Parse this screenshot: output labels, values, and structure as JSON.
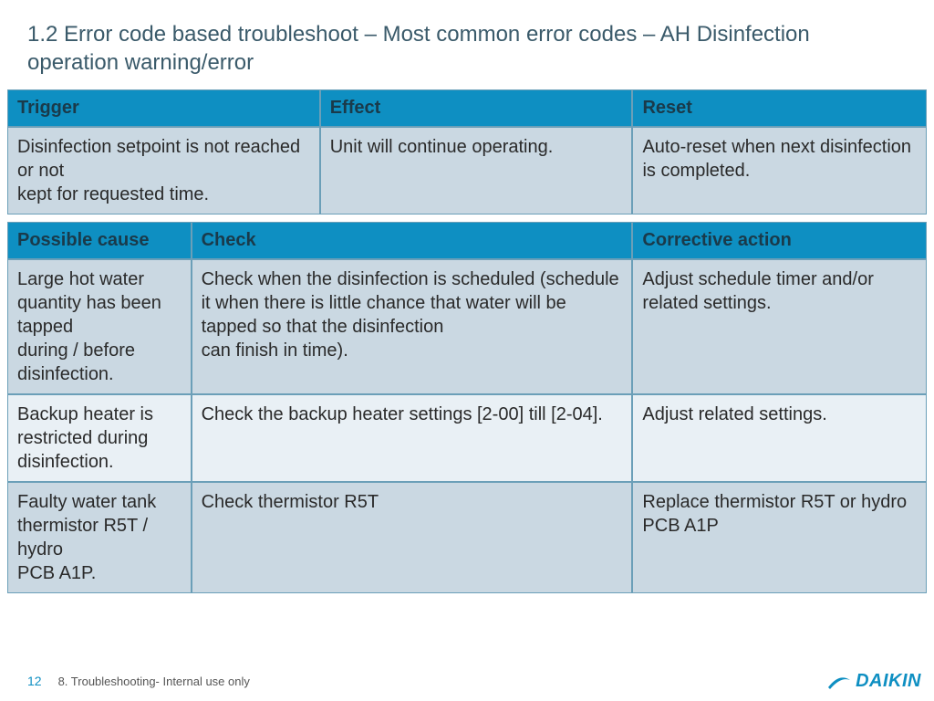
{
  "title": "1.2 Error code based troubleshoot – Most common error codes – AH Disinfection operation warning/error",
  "table1": {
    "headers": [
      "Trigger",
      "Effect",
      "Reset"
    ],
    "row": [
      "Disinfection setpoint is not reached or not\nkept for requested time.",
      "Unit will continue operating.",
      "Auto-reset when next disinfection is completed."
    ]
  },
  "table2": {
    "headers": [
      "Possible cause",
      "Check",
      "Corrective action"
    ],
    "rows": [
      {
        "cause": "Large hot water quantity has been tapped\nduring / before disinfection.",
        "check": "Check when the disinfection is scheduled (schedule it when there is little chance that water will be tapped so that the disinfection\ncan finish in time).",
        "action": "Adjust schedule timer and/or related settings.",
        "shade": "a"
      },
      {
        "cause": "Backup heater is restricted during disinfection.",
        "check": "Check the backup heater settings [2-00] till [2-04].",
        "action": "Adjust related settings.",
        "shade": "b"
      },
      {
        "cause": "Faulty water tank thermistor R5T / hydro\nPCB A1P.",
        "check": "Check thermistor R5T",
        "action": "Replace thermistor R5T or hydro PCB A1P",
        "shade": "a"
      }
    ]
  },
  "footer": {
    "page": "12",
    "text": "8. Troubleshooting- Internal use only",
    "brand": "DAIKIN"
  },
  "colors": {
    "header_bg": "#0e8fc2",
    "header_text": "#1a3a4a",
    "row_a": "#cad8e2",
    "row_b": "#e9f0f5",
    "border": "#6b9fb8",
    "title": "#3a5a6a",
    "brand": "#0e8fc2"
  }
}
